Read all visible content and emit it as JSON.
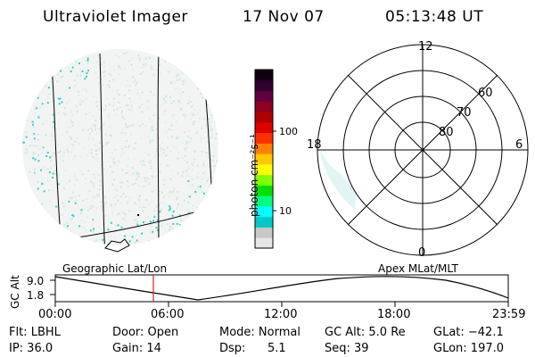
{
  "header": {
    "instrument": "Ultraviolet Imager",
    "date": "17 Nov 07",
    "time": "05:13:48 UT"
  },
  "colorbar": {
    "unit_label": "photon cm⁻²s⁻¹",
    "tick_labels": [
      "100",
      "10"
    ],
    "scale": "log",
    "colors": [
      "#e6e6e6",
      "#c8c8c8",
      "#00c8c8",
      "#00ffff",
      "#00ff80",
      "#00e000",
      "#80ff00",
      "#ffff00",
      "#ffc800",
      "#ff8000",
      "#ff3000",
      "#e00000",
      "#b00000",
      "#900020",
      "#600040",
      "#300030",
      "#100010"
    ]
  },
  "globe_view": {
    "label": "Geographic Lat/Lon"
  },
  "polar_plot": {
    "label": "Apex MLat/MLT",
    "mlt_labels": [
      "12",
      "18",
      "6",
      "0"
    ],
    "mlat_labels": [
      "60",
      "70",
      "80"
    ]
  },
  "altitude_strip": {
    "axis_label": "GC Alt",
    "y_ticks": [
      "9.0",
      "1.8"
    ],
    "x_ticks": [
      "00:00",
      "06:00",
      "12:00",
      "18:00",
      "23:59"
    ],
    "marker_time": "05:13",
    "marker_color": "#cc2222"
  },
  "footer": {
    "flt": "Flt: LBHL",
    "door": "Door: Open",
    "mode": "Mode: Normal",
    "gc_alt": "GC Alt: 5.0 Re",
    "glat": "GLat: −42.1",
    "ip": "IP: 36.0",
    "gain": "Gain: 14",
    "dsp_label": "Dsp:",
    "dsp_value": "5.1",
    "seq": "Seq: 39",
    "glon": "GLon: 197.0"
  }
}
